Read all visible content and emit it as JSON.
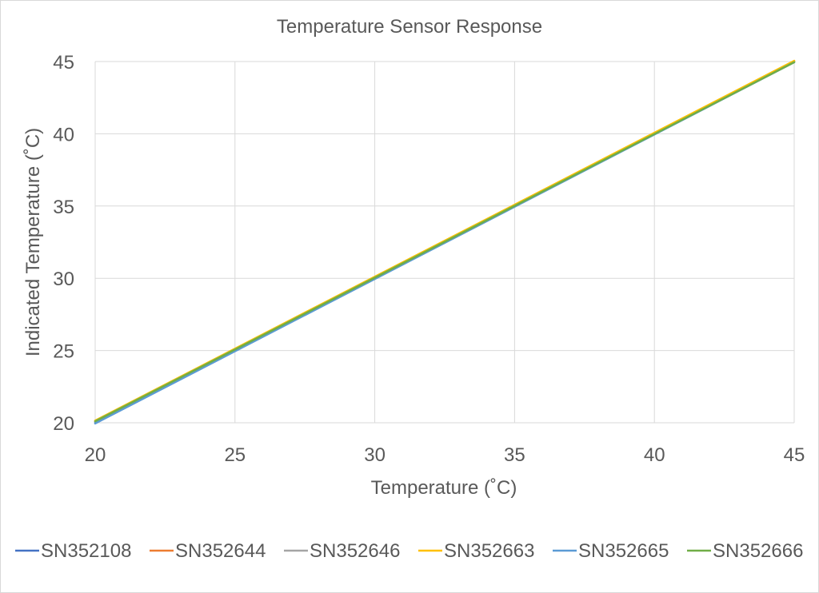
{
  "chart_data": {
    "type": "line",
    "title": "Temperature Sensor Response",
    "xlabel": "Temperature (˚C)",
    "ylabel": "Indicated Temperature (˚C)",
    "xlim": [
      20,
      45
    ],
    "ylim": [
      20,
      45
    ],
    "x_ticks": [
      20,
      25,
      30,
      35,
      40,
      45
    ],
    "y_ticks": [
      20,
      25,
      30,
      35,
      40,
      45
    ],
    "grid": true,
    "legend_position": "bottom",
    "series": [
      {
        "name": "SN352108",
        "color": "#4472c4",
        "x": [
          20,
          45
        ],
        "y": [
          20.0,
          45.0
        ]
      },
      {
        "name": "SN352644",
        "color": "#ed7d31",
        "x": [
          20,
          45
        ],
        "y": [
          20.1,
          45.0
        ]
      },
      {
        "name": "SN352646",
        "color": "#a5a5a5",
        "x": [
          20,
          45
        ],
        "y": [
          20.1,
          45.0
        ]
      },
      {
        "name": "SN352663",
        "color": "#ffc000",
        "x": [
          20,
          45
        ],
        "y": [
          20.15,
          45.05
        ]
      },
      {
        "name": "SN352665",
        "color": "#5b9bd5",
        "x": [
          20,
          45
        ],
        "y": [
          19.95,
          44.95
        ]
      },
      {
        "name": "SN352666",
        "color": "#70ad47",
        "x": [
          20,
          45
        ],
        "y": [
          20.1,
          44.95
        ]
      }
    ]
  }
}
